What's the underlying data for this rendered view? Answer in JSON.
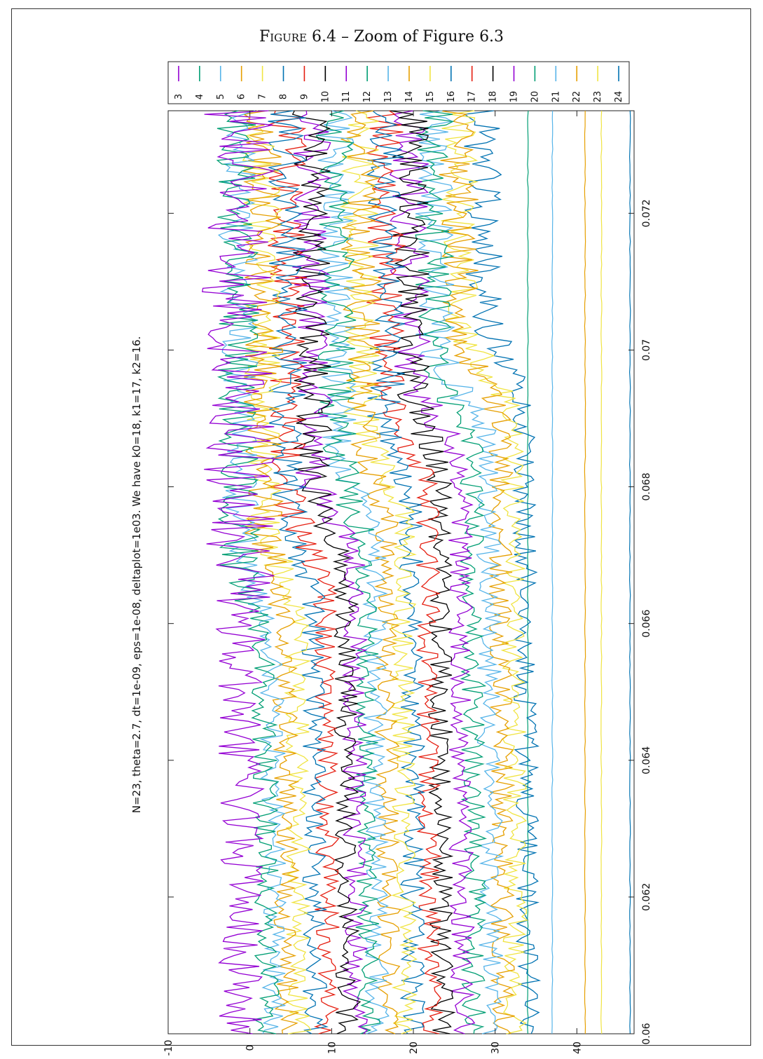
{
  "figure": {
    "label": "Figure 6.4",
    "caption_rest": " – Zoom of Figure 6.3"
  },
  "chart_data": {
    "type": "line",
    "title": "N=23, theta=2.7, dt=1e-09, eps=1e-08, deltaplot=1e03. We have k0=18, k1=17, k2=16.",
    "xlabel": "",
    "ylabel": "",
    "xlim": [
      0.06,
      0.0735
    ],
    "ylim": [
      -10,
      47
    ],
    "x_ticks": [
      "0.06",
      "0.062",
      "0.064",
      "0.066",
      "0.068",
      "0.07",
      "0.072"
    ],
    "y_ticks": [
      "-10",
      "0",
      "10",
      "20",
      "30",
      "40"
    ],
    "orientation": "rotated-90",
    "legend_position": "top",
    "series": [
      {
        "name": "3",
        "color": "#9400d3",
        "start": -1,
        "end": -1,
        "noise": 2.8
      },
      {
        "name": "4",
        "color": "#009e73",
        "start": 2,
        "end": -1,
        "noise": 1.6
      },
      {
        "name": "5",
        "color": "#56b4e9",
        "start": 3,
        "end": -1,
        "noise": 1.5
      },
      {
        "name": "6",
        "color": "#e69f00",
        "start": 4.5,
        "end": 2,
        "noise": 1.5
      },
      {
        "name": "7",
        "color": "#f0e442",
        "start": 6,
        "end": 2,
        "noise": 1.5
      },
      {
        "name": "8",
        "color": "#0072b2",
        "start": 8,
        "end": 5,
        "noise": 1.5
      },
      {
        "name": "9",
        "color": "#e51e10",
        "start": 9.5,
        "end": 5,
        "noise": 1.5
      },
      {
        "name": "10",
        "color": "#000000",
        "start": 12,
        "end": 8,
        "noise": 1.5
      },
      {
        "name": "11",
        "color": "#9400d3",
        "start": 13,
        "end": 8,
        "noise": 1.5
      },
      {
        "name": "12",
        "color": "#009e73",
        "start": 14.5,
        "end": 11,
        "noise": 1.5
      },
      {
        "name": "13",
        "color": "#56b4e9",
        "start": 15.5,
        "end": 11,
        "noise": 1.5
      },
      {
        "name": "14",
        "color": "#e69f00",
        "start": 17,
        "end": 14,
        "noise": 1.5
      },
      {
        "name": "15",
        "color": "#f0e442",
        "start": 19,
        "end": 14,
        "noise": 1.5
      },
      {
        "name": "16",
        "color": "#0072b2",
        "start": 20,
        "end": 17,
        "noise": 1.5
      },
      {
        "name": "17",
        "color": "#e51e10",
        "start": 22,
        "end": 17,
        "noise": 1.5
      },
      {
        "name": "18",
        "color": "#000000",
        "start": 23.5,
        "end": 20,
        "noise": 1.5
      },
      {
        "name": "19",
        "color": "#9400d3",
        "start": 26,
        "end": 20,
        "noise": 1.5
      },
      {
        "name": "20",
        "color": "#009e73",
        "start": 27.5,
        "end": 23,
        "noise": 1.5
      },
      {
        "name": "21",
        "color": "#56b4e9",
        "start": 29.5,
        "end": 23,
        "noise": 1.5
      },
      {
        "name": "22",
        "color": "#e69f00",
        "start": 31,
        "end": 26,
        "noise": 1.5
      },
      {
        "name": "23",
        "color": "#f0e442",
        "start": 32.5,
        "end": 26,
        "noise": 1.5
      },
      {
        "name": "24",
        "color": "#0072b2",
        "start": 34,
        "end": 29,
        "noise": 1.5
      }
    ],
    "flat_lines": [
      {
        "color": "#0072b2",
        "value": 46.5
      },
      {
        "color": "#f0e442",
        "value": 43
      },
      {
        "color": "#e69f00",
        "value": 41
      },
      {
        "color": "#56b4e9",
        "value": 37
      },
      {
        "color": "#009e73",
        "value": 34
      }
    ]
  }
}
